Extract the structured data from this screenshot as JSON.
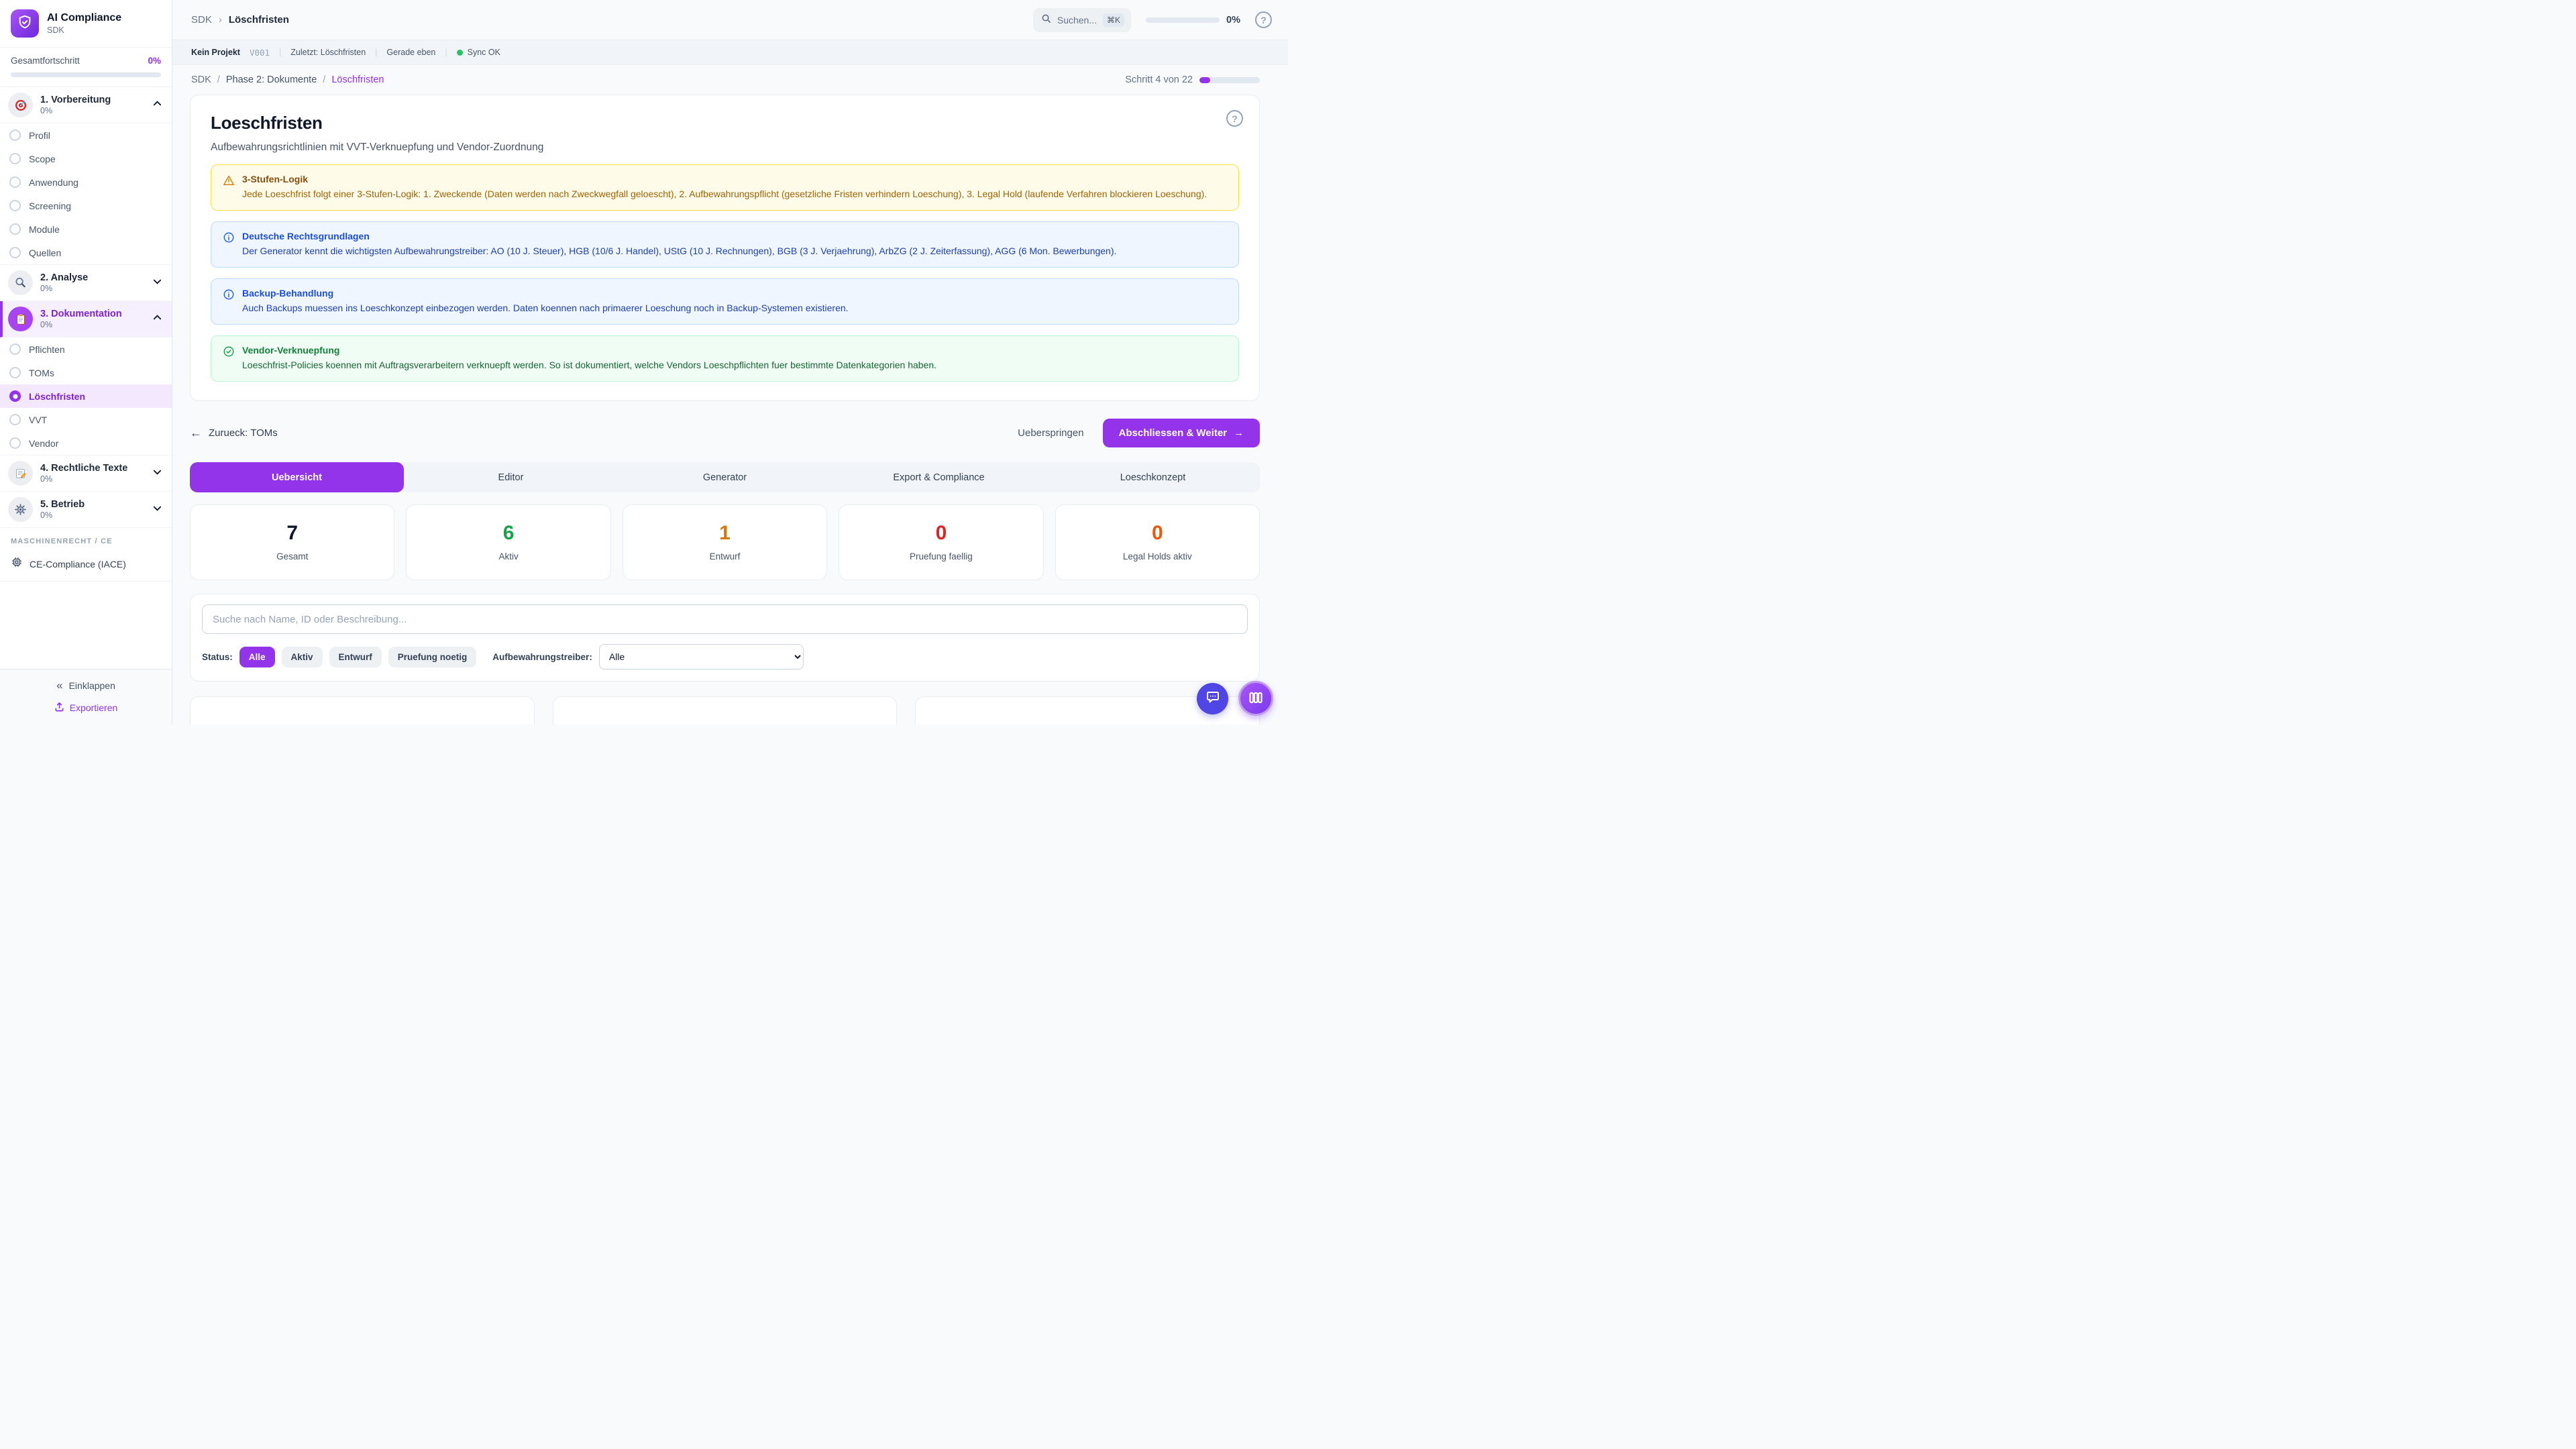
{
  "colors": {
    "accent": "#9333ea",
    "stat_total": "#0f172a",
    "stat_active": "#16a34a",
    "stat_draft": "#d97706",
    "stat_review": "#dc2626",
    "stat_legalhold": "#ea580c",
    "sync_ok": "#22c55e"
  },
  "sidebar": {
    "app_title": "AI Compliance",
    "app_subtitle": "SDK",
    "overall_label": "Gesamtfortschritt",
    "overall_value": "0%",
    "phases": [
      {
        "label": "1. Vorbereitung",
        "percent": "0%"
      },
      {
        "label": "2. Analyse",
        "percent": "0%"
      },
      {
        "label": "3. Dokumentation",
        "percent": "0%"
      },
      {
        "label": "4. Rechtliche Texte",
        "percent": "0%"
      },
      {
        "label": "5. Betrieb",
        "percent": "0%"
      }
    ],
    "phase1_items": [
      "Profil",
      "Scope",
      "Anwendung",
      "Screening",
      "Module",
      "Quellen"
    ],
    "phase3_items": [
      "Pflichten",
      "TOMs",
      "Löschfristen",
      "VVT",
      "Vendor"
    ],
    "active_item": "Löschfristen",
    "section_header": "MASCHINENRECHT / CE",
    "ce_item": "CE-Compliance (IACE)",
    "collapse_label": "Einklappen",
    "collapse_glyph": "«",
    "export_label": "Exportieren"
  },
  "topbar": {
    "breadcrumb_root": "SDK",
    "breadcrumb_sep": "›",
    "breadcrumb_current": "Löschfristen",
    "search_placeholder": "Suchen...",
    "search_shortcut": "⌘K",
    "progress_value": "0%"
  },
  "statusbar": {
    "project": "Kein Projekt",
    "version": "V001",
    "divider": "|",
    "last": "Zuletzt: Löschfristen",
    "time": "Gerade eben",
    "sync": "Sync OK"
  },
  "pagebar": {
    "crumb_root": "SDK",
    "crumb_sep": "/",
    "crumb_mid": "Phase 2: Dokumente",
    "crumb_current": "Löschfristen",
    "step_label": "Schritt 4 von 22",
    "step_percent": 18
  },
  "main": {
    "title": "Loeschfristen",
    "subtitle": "Aufbewahrungsrichtlinien mit VVT-Verknuepfung und Vendor-Zuordnung",
    "info_boxes": [
      {
        "type": "warning",
        "title": "3-Stufen-Logik",
        "body": "Jede Loeschfrist folgt einer 3-Stufen-Logik: 1. Zweckende (Daten werden nach Zweckwegfall geloescht), 2. Aufbewahrungspflicht (gesetzliche Fristen verhindern Loeschung), 3. Legal Hold (laufende Verfahren blockieren Loeschung)."
      },
      {
        "type": "info",
        "title": "Deutsche Rechtsgrundlagen",
        "body": "Der Generator kennt die wichtigsten Aufbewahrungstreiber: AO (10 J. Steuer), HGB (10/6 J. Handel), UStG (10 J. Rechnungen), BGB (3 J. Verjaehrung), ArbZG (2 J. Zeiterfassung), AGG (6 Mon. Bewerbungen)."
      },
      {
        "type": "info",
        "title": "Backup-Behandlung",
        "body": "Auch Backups muessen ins Loeschkonzept einbezogen werden. Daten koennen nach primaerer Loeschung noch in Backup-Systemen existieren."
      },
      {
        "type": "success",
        "title": "Vendor-Verknuepfung",
        "body": "Loeschfrist-Policies koennen mit Auftragsverarbeitern verknuepft werden. So ist dokumentiert, welche Vendors Loeschpflichten fuer bestimmte Datenkategorien haben."
      }
    ],
    "back_label": "Zurueck: TOMs",
    "back_arrow": "←",
    "skip_label": "Ueberspringen",
    "next_label": "Abschliessen & Weiter",
    "next_arrow": "→",
    "tabs": [
      "Uebersicht",
      "Editor",
      "Generator",
      "Export & Compliance",
      "Loeschkonzept"
    ],
    "active_tab": "Uebersicht",
    "stats": [
      {
        "value": "7",
        "label": "Gesamt",
        "color": "#0f172a"
      },
      {
        "value": "6",
        "label": "Aktiv",
        "color": "#16a34a"
      },
      {
        "value": "1",
        "label": "Entwurf",
        "color": "#d97706"
      },
      {
        "value": "0",
        "label": "Pruefung faellig",
        "color": "#dc2626"
      },
      {
        "value": "0",
        "label": "Legal Holds aktiv",
        "color": "#ea580c"
      }
    ],
    "search_placeholder": "Suche nach Name, ID oder Beschreibung...",
    "filters": {
      "status_label": "Status:",
      "chips": [
        "Alle",
        "Aktiv",
        "Entwurf",
        "Pruefung noetig"
      ],
      "active_chip": "Alle",
      "driver_label": "Aufbewahrungstreiber:",
      "driver_value": "Alle"
    }
  }
}
